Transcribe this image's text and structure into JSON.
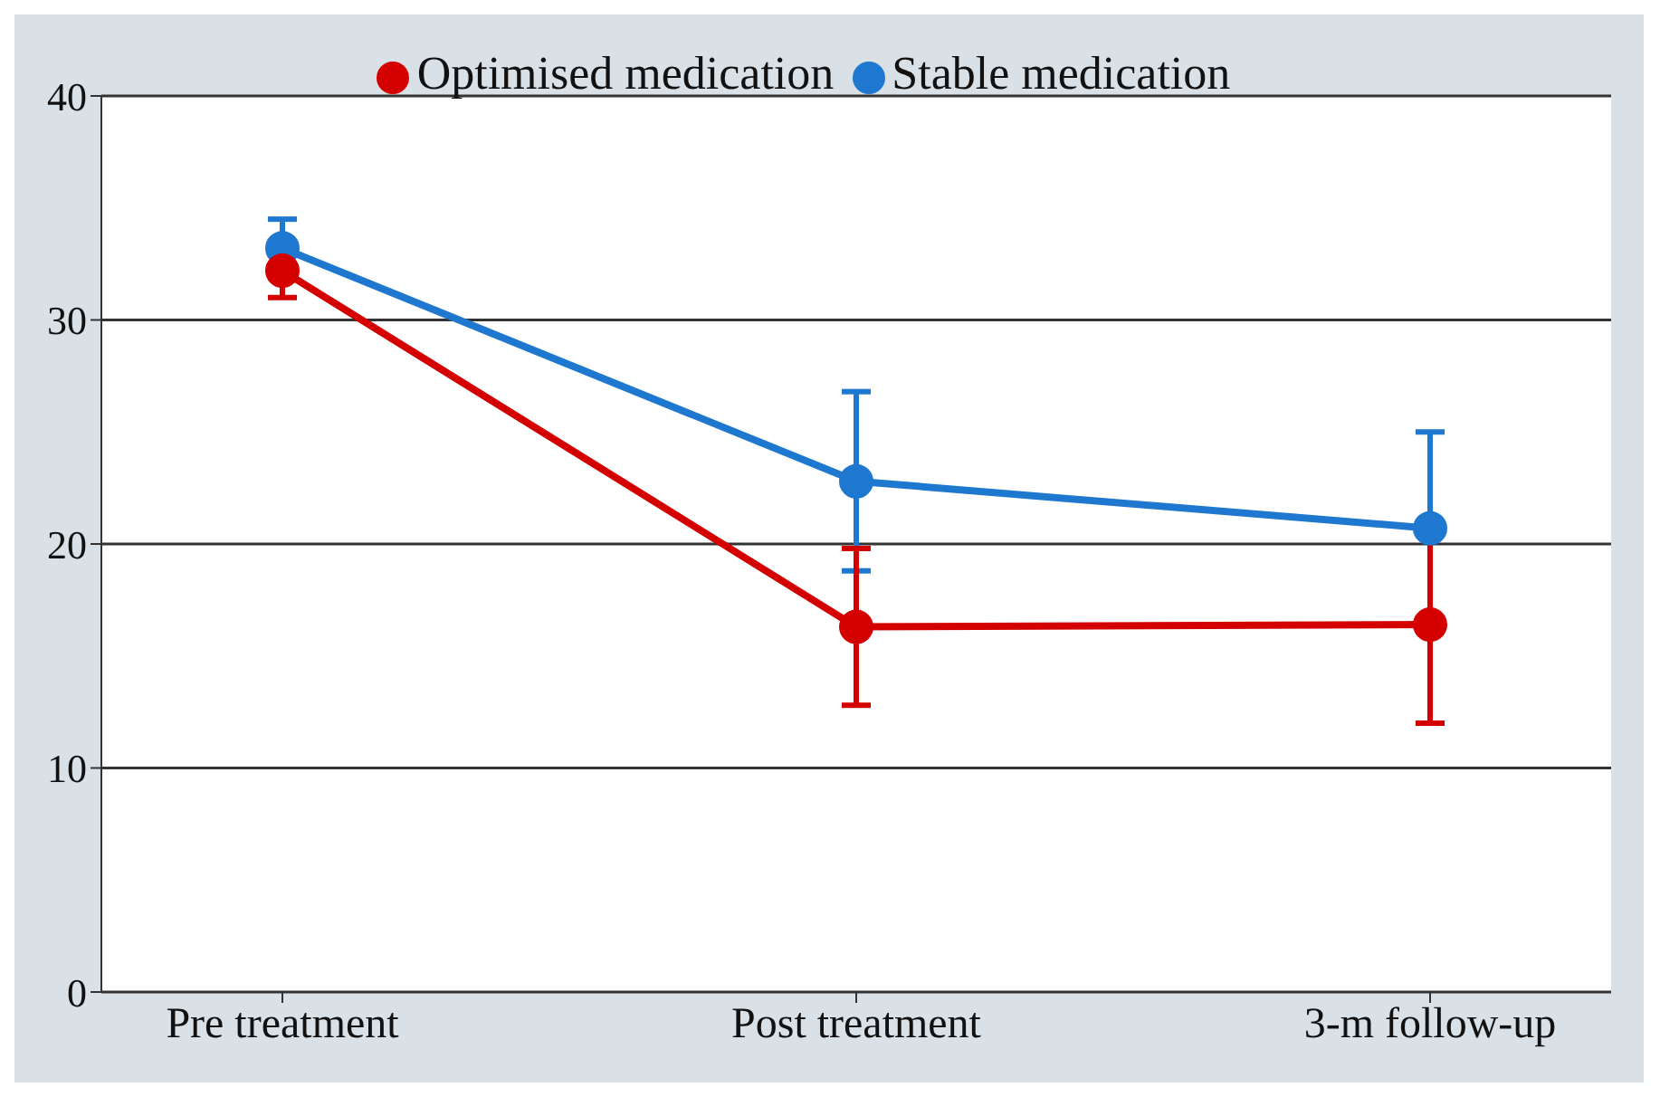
{
  "chart_data": {
    "type": "line",
    "categories": [
      "Pre treatment",
      "Post treatment",
      "3-m follow-up"
    ],
    "series": [
      {
        "name": "Stable medication",
        "color": "#1f78d0",
        "values": [
          33.2,
          22.8,
          20.7
        ],
        "errors": [
          1.3,
          4,
          4.3
        ]
      },
      {
        "name": "Optimised medication",
        "color": "#d40000",
        "values": [
          32.2,
          16.3,
          16.4
        ],
        "errors": [
          1.2,
          3.5,
          4.4
        ]
      }
    ],
    "ylim": [
      0,
      40
    ],
    "yticks": [
      0,
      10,
      20,
      30,
      40
    ],
    "grid": "y",
    "legend": "top",
    "marker": "circle"
  }
}
